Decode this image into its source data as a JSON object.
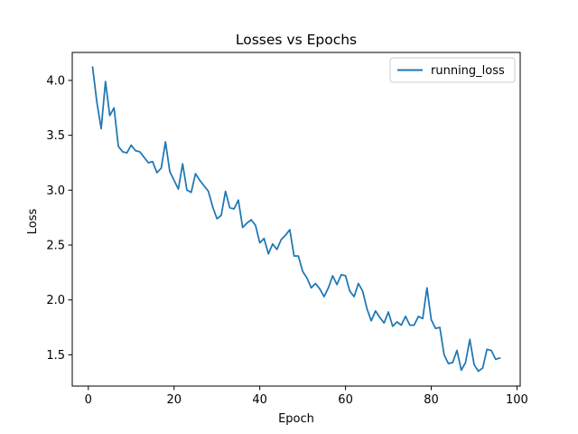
{
  "chart_data": {
    "type": "line",
    "title": "Losses vs Epochs",
    "xlabel": "Epoch",
    "ylabel": "Loss",
    "xlim": [
      -3.75,
      100.75
    ],
    "ylim": [
      1.215,
      4.255
    ],
    "xticks": [
      "0",
      "20",
      "40",
      "60",
      "80",
      "100"
    ],
    "yticks": [
      "1.5",
      "2.0",
      "2.5",
      "3.0",
      "3.5",
      "4.0"
    ],
    "xtick_values": [
      0,
      20,
      40,
      60,
      80,
      100
    ],
    "ytick_values": [
      1.5,
      2.0,
      2.5,
      3.0,
      3.5,
      4.0
    ],
    "grid": false,
    "legend_position": "top-right",
    "series": [
      {
        "name": "running_loss",
        "color": "#1f77b4",
        "x": [
          1,
          2,
          3,
          4,
          5,
          6,
          7,
          8,
          9,
          10,
          11,
          12,
          13,
          14,
          15,
          16,
          17,
          18,
          19,
          20,
          21,
          22,
          23,
          24,
          25,
          26,
          27,
          28,
          29,
          30,
          31,
          32,
          33,
          34,
          35,
          36,
          37,
          38,
          39,
          40,
          41,
          42,
          43,
          44,
          45,
          46,
          47,
          48,
          49,
          50,
          51,
          52,
          53,
          54,
          55,
          56,
          57,
          58,
          59,
          60,
          61,
          62,
          63,
          64,
          65,
          66,
          67,
          68,
          69,
          70,
          71,
          72,
          73,
          74,
          75,
          76,
          77,
          78,
          79,
          80,
          81,
          82,
          83,
          84,
          85,
          86,
          87,
          88,
          89,
          90,
          91,
          92,
          93,
          94,
          95,
          96
        ],
        "y": [
          4.12,
          3.8,
          3.56,
          3.99,
          3.68,
          3.75,
          3.4,
          3.35,
          3.34,
          3.41,
          3.36,
          3.35,
          3.3,
          3.25,
          3.26,
          3.16,
          3.2,
          3.44,
          3.17,
          3.09,
          3.01,
          3.24,
          3.0,
          2.98,
          3.15,
          3.09,
          3.04,
          2.99,
          2.85,
          2.74,
          2.77,
          2.99,
          2.84,
          2.83,
          2.91,
          2.66,
          2.7,
          2.73,
          2.68,
          2.52,
          2.56,
          2.42,
          2.51,
          2.46,
          2.55,
          2.59,
          2.64,
          2.4,
          2.4,
          2.26,
          2.2,
          2.11,
          2.15,
          2.1,
          2.03,
          2.11,
          2.22,
          2.14,
          2.23,
          2.22,
          2.08,
          2.03,
          2.15,
          2.08,
          1.92,
          1.81,
          1.9,
          1.84,
          1.79,
          1.89,
          1.76,
          1.8,
          1.77,
          1.85,
          1.77,
          1.77,
          1.85,
          1.83,
          2.11,
          1.82,
          1.74,
          1.75,
          1.5,
          1.42,
          1.43,
          1.54,
          1.36,
          1.43,
          1.64,
          1.41,
          1.35,
          1.38,
          1.55,
          1.54,
          1.46,
          1.47
        ]
      }
    ]
  }
}
